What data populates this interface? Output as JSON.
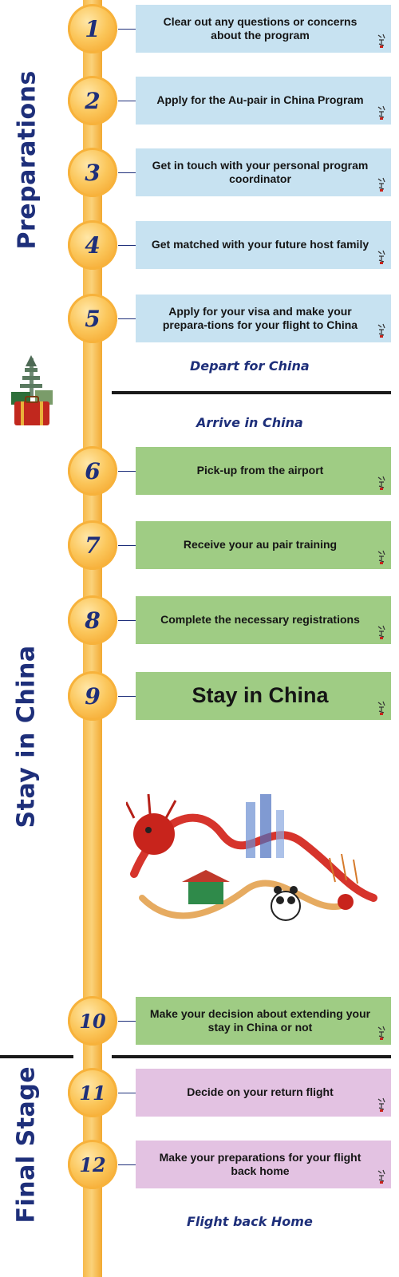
{
  "stages": {
    "preparations": "Preparations",
    "stay": "Stay in China",
    "final": "Final Stage"
  },
  "milestones": {
    "depart": "Depart for China",
    "arrive": "Arrive in China",
    "home": "Flight back Home"
  },
  "steps": [
    {
      "number": "1",
      "text": "Clear out any questions or concerns about the program"
    },
    {
      "number": "2",
      "text": "Apply for the Au-pair in China Program"
    },
    {
      "number": "3",
      "text": "Get in touch with your personal program coordinator"
    },
    {
      "number": "4",
      "text": "Get matched with your future host family"
    },
    {
      "number": "5",
      "text": "Apply for your visa and make your prepara-tions for your flight to China"
    },
    {
      "number": "6",
      "text": "Pick-up from the airport"
    },
    {
      "number": "7",
      "text": "Receive your au pair training"
    },
    {
      "number": "8",
      "text": "Complete the necessary registrations"
    },
    {
      "number": "9",
      "text": "Stay in China"
    },
    {
      "number": "10",
      "text": "Make your decision about extending your stay in China or not"
    },
    {
      "number": "11",
      "text": "Decide on your return flight"
    },
    {
      "number": "12",
      "text": "Make your preparations for your flight back home"
    }
  ],
  "colors": {
    "preparations_card": "#c7e2f1",
    "stay_card": "#9fcc84",
    "final_card": "#e3c2e2",
    "stage_text": "#1e2f7a",
    "spine": "#f6b94a"
  }
}
